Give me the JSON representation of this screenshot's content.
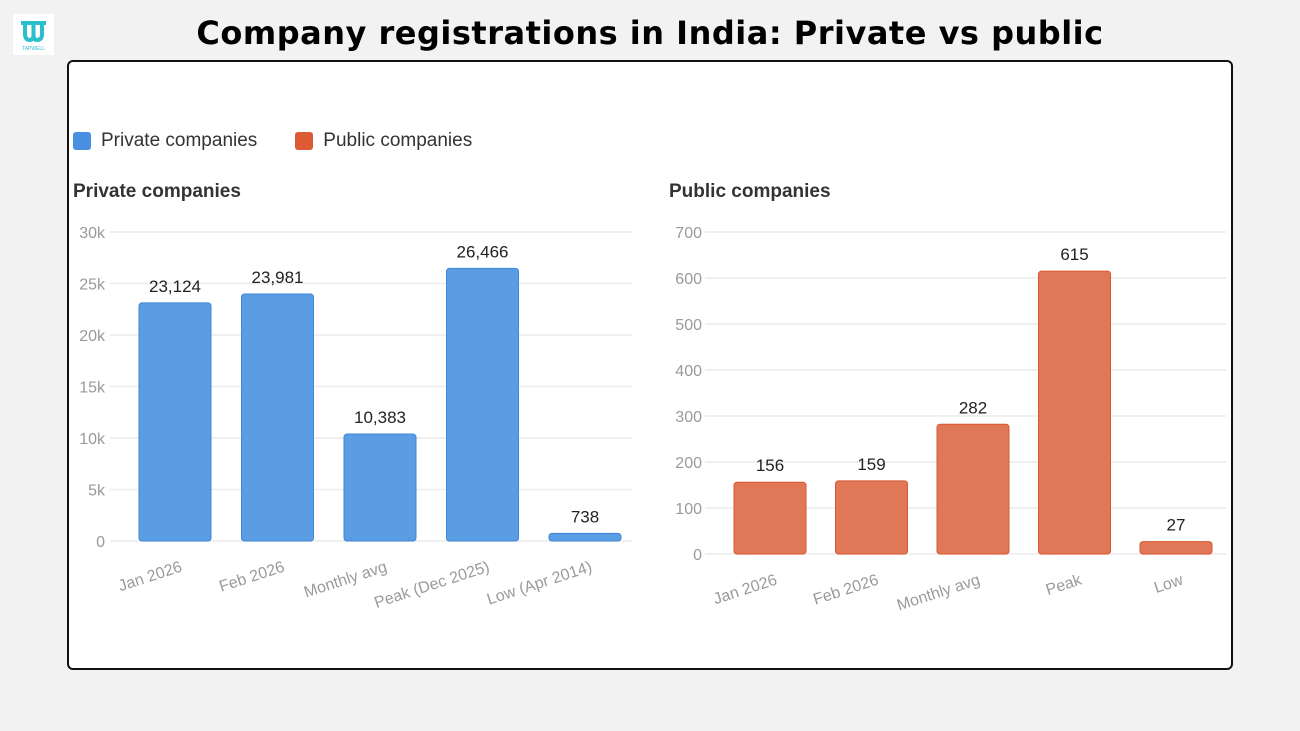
{
  "title": "Company registrations in India: Private vs public",
  "logo": {
    "text": "TAPWELL",
    "color": "#2bbfcc"
  },
  "legend": [
    {
      "label": "Private companies",
      "color": "#4a90e2"
    },
    {
      "label": "Public companies",
      "color": "#dd5a35"
    }
  ],
  "chart_data": [
    {
      "type": "bar",
      "title": "Private companies",
      "categories": [
        "Jan 2026",
        "Feb 2026",
        "Monthly avg",
        "Peak (Dec 2025)",
        "Low (Apr 2014)"
      ],
      "values": [
        23124,
        23981,
        10383,
        26466,
        738
      ],
      "value_labels": [
        "23,124",
        "23,981",
        "10,383",
        "26,466",
        "738"
      ],
      "yticks": [
        0,
        5000,
        10000,
        15000,
        20000,
        25000,
        30000
      ],
      "ytick_labels": [
        "0",
        "5k",
        "10k",
        "15k",
        "20k",
        "25k",
        "30k"
      ],
      "ylim": [
        0,
        30000
      ],
      "grid": true,
      "color": "#5b9de2"
    },
    {
      "type": "bar",
      "title": "Public companies",
      "categories": [
        "Jan 2026",
        "Feb 2026",
        "Monthly avg",
        "Peak",
        "Low"
      ],
      "values": [
        156,
        159,
        282,
        615,
        27
      ],
      "value_labels": [
        "156",
        "159",
        "282",
        "615",
        "27"
      ],
      "yticks": [
        0,
        100,
        200,
        300,
        400,
        500,
        600,
        700
      ],
      "ytick_labels": [
        "0",
        "100",
        "200",
        "300",
        "400",
        "500",
        "600",
        "700"
      ],
      "ylim": [
        0,
        700
      ],
      "grid": true,
      "color": "#e07858"
    }
  ]
}
